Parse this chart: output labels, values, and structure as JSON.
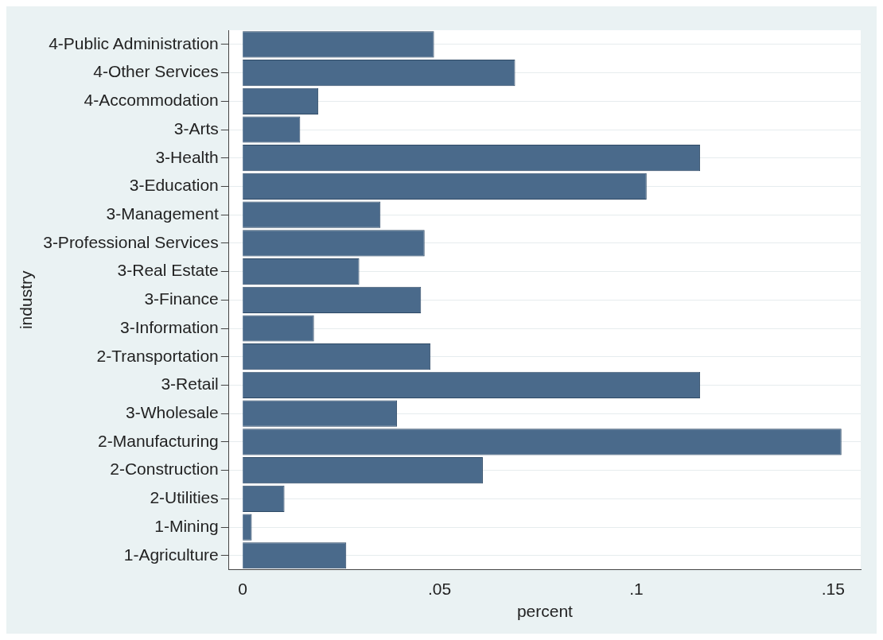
{
  "chart_data": {
    "type": "bar",
    "orientation": "horizontal",
    "xlabel": "percent",
    "ylabel": "industry",
    "categories": [
      "4-Public Administration",
      "4-Other Services",
      "4-Accommodation",
      "3-Arts",
      "3-Health",
      "3-Education",
      "3-Management",
      "3-Professional Services",
      "3-Real Estate",
      "3-Finance",
      "3-Information",
      "2-Transportation",
      "3-Retail",
      "3-Wholesale",
      "2-Manufacturing",
      "2-Construction",
      "2-Utilities",
      "1-Mining",
      "1-Agriculture"
    ],
    "values": [
      0.0486,
      0.0692,
      0.0192,
      0.0146,
      0.1162,
      0.1026,
      0.035,
      0.0462,
      0.0296,
      0.0453,
      0.0181,
      0.0477,
      0.1162,
      0.0392,
      0.1521,
      0.061,
      0.0106,
      0.0023,
      0.0263
    ],
    "color": "#4a6a8b",
    "xlim": [
      -0.0035,
      0.157
    ],
    "xticks": [
      0,
      {
        "value": 0.05,
        "label": ".05"
      },
      {
        "value": 0.1,
        "label": ".1"
      },
      {
        "value": 0.15,
        "label": ".15"
      }
    ],
    "grid": "y",
    "legend": false
  }
}
